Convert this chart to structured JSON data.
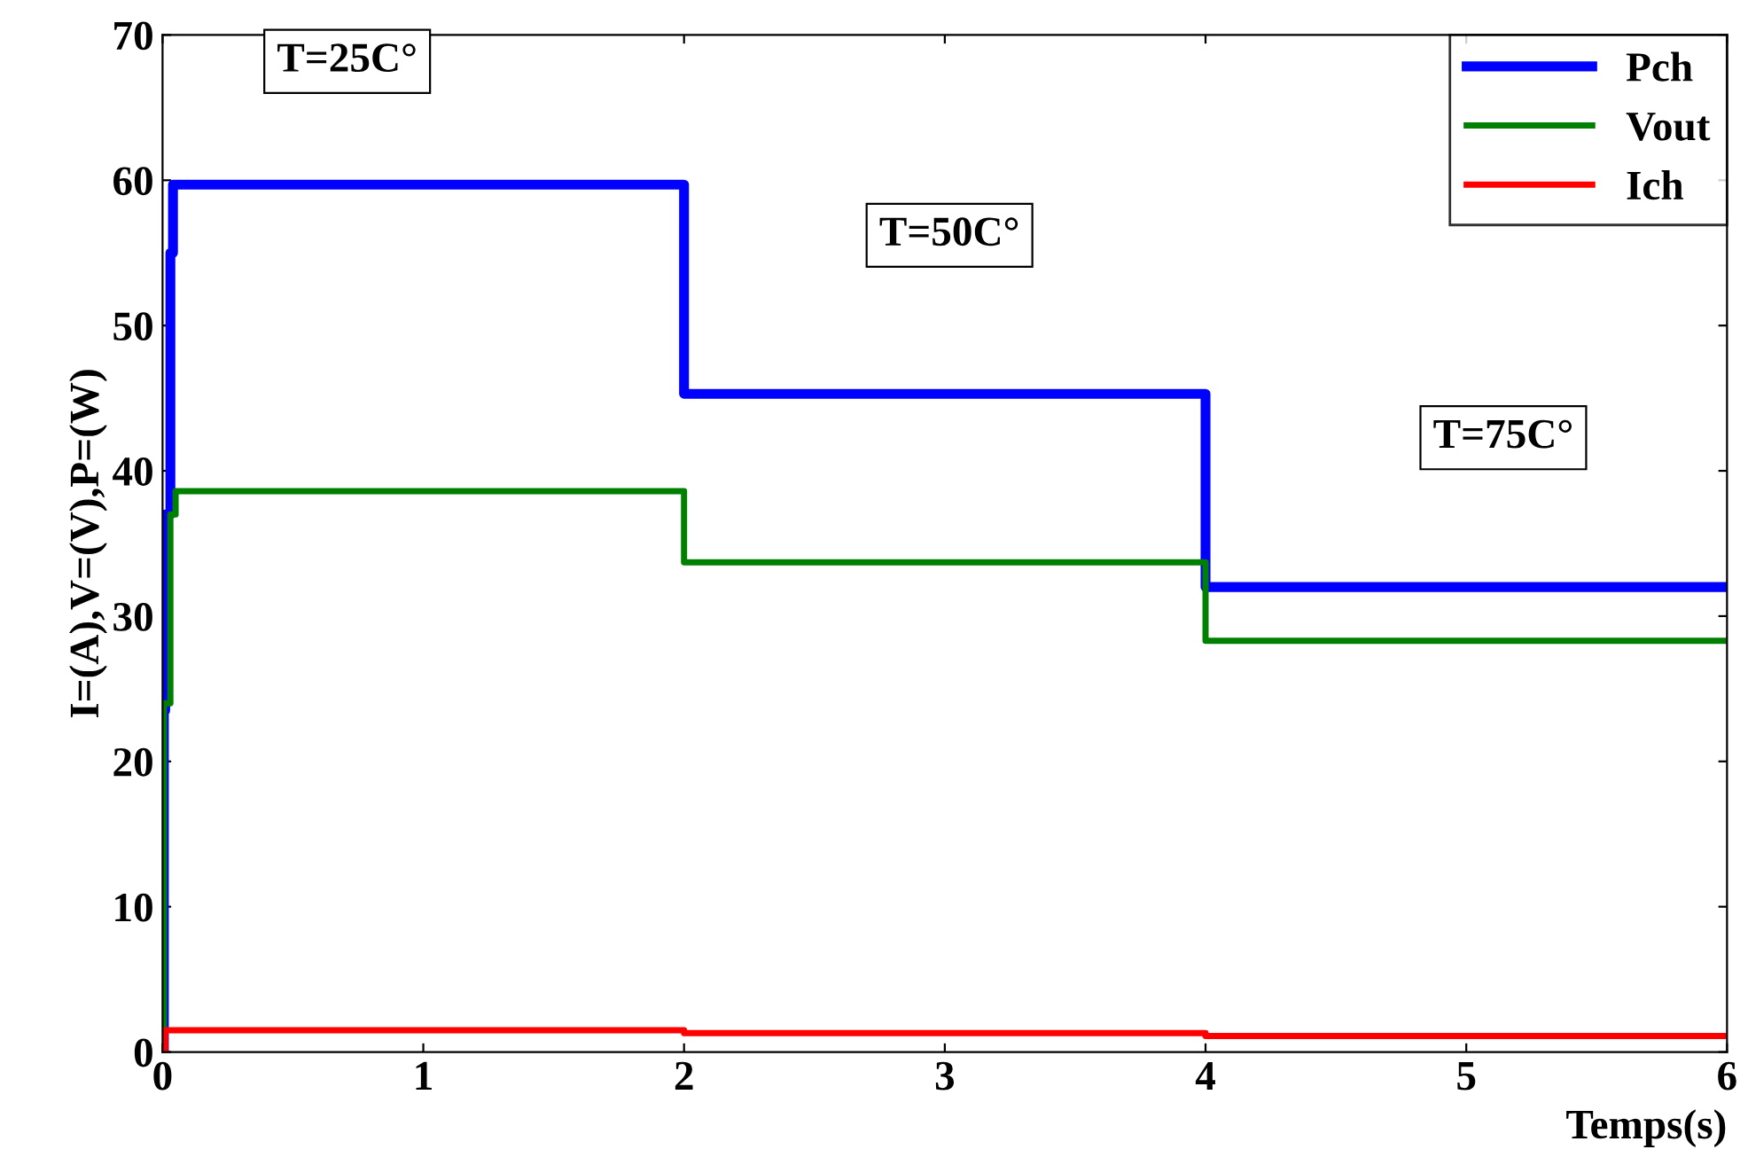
{
  "chart_data": {
    "type": "step",
    "xlabel": "Temps(s)",
    "ylabel": "I=(A),V=(V),P=(W)",
    "xlim": [
      0,
      6
    ],
    "ylim": [
      0,
      70
    ],
    "xticks": [
      0,
      1,
      2,
      3,
      4,
      5,
      6
    ],
    "yticks": [
      0,
      10,
      20,
      30,
      40,
      50,
      60,
      70
    ],
    "grid": false,
    "legend": "top right",
    "series": [
      {
        "name": "Pch",
        "color": "#0000ff",
        "x": [
          0,
          0.005,
          0.01,
          0.03,
          0.04,
          2,
          4,
          6
        ],
        "values": [
          0,
          23.5,
          37,
          55,
          59.7,
          45.3,
          32,
          32
        ]
      },
      {
        "name": "Vout",
        "color": "#008000",
        "x": [
          0,
          0.005,
          0.03,
          0.05,
          2,
          4,
          6
        ],
        "values": [
          0,
          24,
          37,
          38.6,
          33.7,
          28.3,
          28.3
        ]
      },
      {
        "name": "Ich",
        "color": "#ff0000",
        "x": [
          0,
          0.01,
          2,
          4,
          6
        ],
        "values": [
          0,
          1.5,
          1.3,
          1.1,
          1.1
        ]
      }
    ],
    "annotations": [
      "T=25C°",
      "T=50C°",
      "T=75C°"
    ]
  }
}
